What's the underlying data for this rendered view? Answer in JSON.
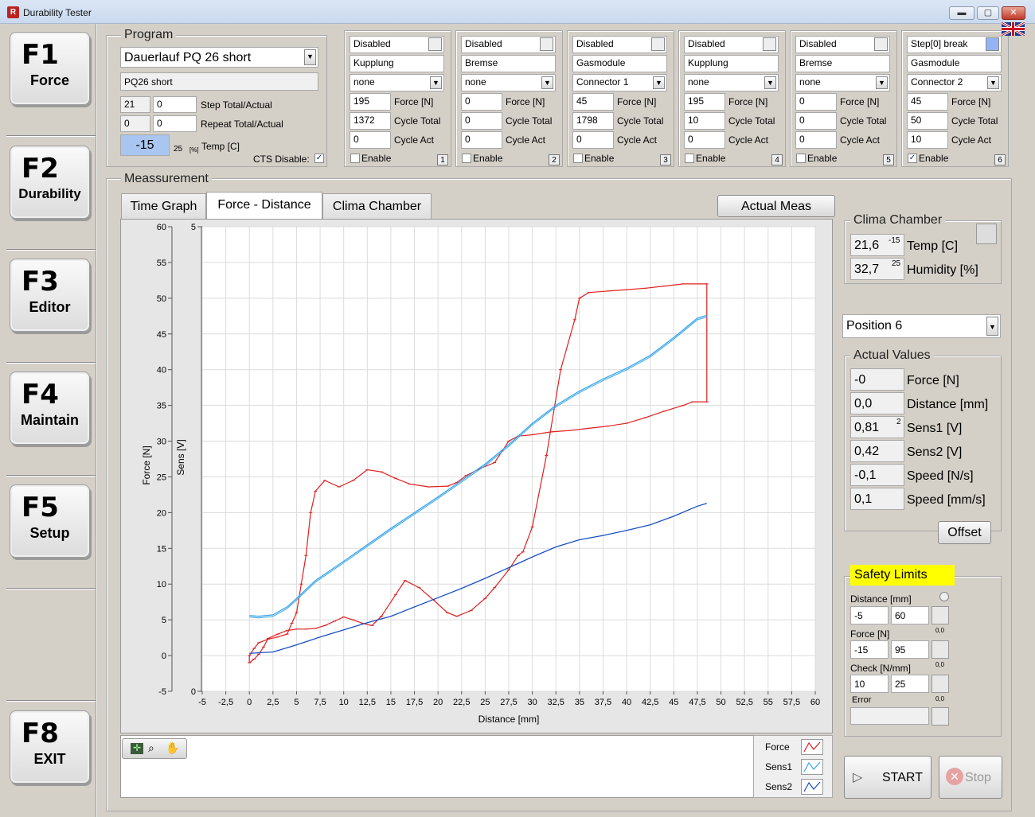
{
  "window": {
    "title": "Durability Tester",
    "minimize": "▬",
    "maximize": "▢",
    "close": "✕"
  },
  "function_keys": [
    {
      "key": "F1",
      "label": "Force"
    },
    {
      "key": "F2",
      "label": "Durability"
    },
    {
      "key": "F3",
      "label": "Editor"
    },
    {
      "key": "F4",
      "label": "Maintain"
    },
    {
      "key": "F5",
      "label": "Setup"
    },
    {
      "key": "F8",
      "label": "EXIT"
    }
  ],
  "program": {
    "group_label": "Program",
    "selected": "Dauerlauf PQ 26 short",
    "name": "PQ26 short",
    "step_total": "21",
    "step_actual": "0",
    "step_label": "Step Total/Actual",
    "repeat_total": "0",
    "repeat_actual": "0",
    "repeat_label": "Repeat Total/Actual",
    "temp": "-15",
    "temp_small": "25",
    "temp_unit": "[%]",
    "temp_label": "Temp [C]",
    "cts_label": "CTS Disable:",
    "cts_checked": "✓"
  },
  "stations": [
    {
      "status": "Disabled",
      "device": "Kupplung",
      "connector": "none",
      "force": "195",
      "cycle_total": "1372",
      "cycle_act": "0",
      "enabled": "",
      "number": "1"
    },
    {
      "status": "Disabled",
      "device": "Bremse",
      "connector": "none",
      "force": "0",
      "cycle_total": "0",
      "cycle_act": "0",
      "enabled": "",
      "number": "2"
    },
    {
      "status": "Disabled",
      "device": "Gasmodule",
      "connector": "Connector 1",
      "force": "45",
      "cycle_total": "1798",
      "cycle_act": "0",
      "enabled": "",
      "number": "3"
    },
    {
      "status": "Disabled",
      "device": "Kupplung",
      "connector": "none",
      "force": "195",
      "cycle_total": "10",
      "cycle_act": "0",
      "enabled": "",
      "number": "4"
    },
    {
      "status": "Disabled",
      "device": "Bremse",
      "connector": "none",
      "force": "0",
      "cycle_total": "0",
      "cycle_act": "0",
      "enabled": "",
      "number": "5"
    },
    {
      "status": "Step[0] break",
      "device": "Gasmodule",
      "connector": "Connector 2",
      "force": "45",
      "cycle_total": "50",
      "cycle_act": "10",
      "enabled": "✓",
      "number": "6"
    }
  ],
  "station_labels": {
    "force": "Force [N]",
    "cycle_total": "Cycle Total",
    "cycle_act": "Cycle Act",
    "enable": "Enable"
  },
  "measurement": {
    "group_label": "Meassurement",
    "tabs": [
      "Time Graph",
      "Force - Distance",
      "Clima Chamber"
    ],
    "active_tab": "Force - Distance",
    "actual_meas_button": "Actual Meas"
  },
  "legend": [
    {
      "name": "Force",
      "color": "#e02020"
    },
    {
      "name": "Sens1",
      "color": "#3aa6ea"
    },
    {
      "name": "Sens2",
      "color": "#1a4fc0"
    }
  ],
  "chart_data": {
    "type": "line",
    "xlabel": "Distance [mm]",
    "ylabel": "Force [N]",
    "ylabel2": "Sens [V]",
    "xlim": [
      -5,
      60
    ],
    "ylim": [
      -5,
      60
    ],
    "ylim2": [
      0,
      5
    ],
    "x_ticks": [
      "-5",
      "-2,5",
      "0",
      "2,5",
      "5",
      "7,5",
      "10",
      "12,5",
      "15",
      "17,5",
      "20",
      "22,5",
      "25",
      "27,5",
      "30",
      "32,5",
      "35",
      "37,5",
      "40",
      "42,5",
      "45",
      "47,5",
      "50",
      "52,5",
      "55",
      "57,5",
      "60"
    ],
    "y_ticks": [
      "-5",
      "0",
      "5",
      "10",
      "15",
      "20",
      "25",
      "30",
      "35",
      "40",
      "45",
      "50",
      "55",
      "60"
    ],
    "y2_ticks": [
      "0",
      "5"
    ],
    "grid": true,
    "series": [
      {
        "name": "Force",
        "color": "#e02020",
        "points": [
          [
            0,
            -1
          ],
          [
            0,
            0
          ],
          [
            0.5,
            1
          ],
          [
            1,
            1.8
          ],
          [
            2,
            2.3
          ],
          [
            3,
            2.6
          ],
          [
            4,
            3
          ],
          [
            4.5,
            4.5
          ],
          [
            5,
            6
          ],
          [
            5.5,
            10
          ],
          [
            6,
            14
          ],
          [
            6.5,
            20
          ],
          [
            7,
            23
          ],
          [
            8,
            24.5
          ],
          [
            9.5,
            23.6
          ],
          [
            11,
            24.5
          ],
          [
            12.5,
            26
          ],
          [
            14,
            25.7
          ],
          [
            15.5,
            24.8
          ],
          [
            17,
            24
          ],
          [
            19,
            23.6
          ],
          [
            21,
            23.7
          ],
          [
            22,
            24.2
          ],
          [
            23,
            25.2
          ],
          [
            24.5,
            26.2
          ],
          [
            26,
            27
          ],
          [
            27.5,
            30
          ],
          [
            28.5,
            30.7
          ],
          [
            30,
            30.9
          ],
          [
            32,
            31.3
          ],
          [
            34,
            31.5
          ],
          [
            36,
            31.8
          ],
          [
            38,
            32.1
          ],
          [
            40,
            32.5
          ],
          [
            42,
            33.3
          ],
          [
            44,
            34.2
          ],
          [
            46,
            35
          ],
          [
            47,
            35.5
          ],
          [
            48.5,
            35.5
          ],
          [
            48.5,
            52
          ],
          [
            46,
            52
          ],
          [
            44,
            51.7
          ],
          [
            42,
            51.4
          ],
          [
            40,
            51.2
          ],
          [
            38,
            51
          ],
          [
            36,
            50.8
          ],
          [
            35,
            50
          ],
          [
            34.5,
            47
          ],
          [
            33,
            40
          ],
          [
            31.5,
            28
          ],
          [
            30,
            18
          ],
          [
            29,
            14.5
          ],
          [
            28.5,
            14
          ],
          [
            27.5,
            12
          ],
          [
            26,
            9.5
          ],
          [
            25,
            8
          ],
          [
            23.5,
            6.3
          ],
          [
            22,
            5.5
          ],
          [
            21,
            6
          ],
          [
            19.5,
            7.8
          ],
          [
            18,
            9.5
          ],
          [
            16.5,
            10.5
          ],
          [
            15.5,
            8.5
          ],
          [
            14,
            5.5
          ],
          [
            13,
            4.2
          ],
          [
            12,
            4.5
          ],
          [
            11,
            5
          ],
          [
            10,
            5.4
          ],
          [
            9,
            4.8
          ],
          [
            8,
            4.2
          ],
          [
            7,
            3.8
          ],
          [
            6,
            3.7
          ],
          [
            5,
            3.7
          ],
          [
            4,
            3.5
          ],
          [
            3,
            3
          ],
          [
            2,
            2.4
          ],
          [
            1.5,
            1.2
          ],
          [
            1,
            0.2
          ],
          [
            0.5,
            -0.5
          ],
          [
            0,
            -1
          ]
        ]
      },
      {
        "name": "Sens1",
        "color": "#3aa6ea",
        "points": [
          [
            0,
            5.6
          ],
          [
            1,
            5.5
          ],
          [
            2.5,
            5.7
          ],
          [
            4,
            6.8
          ],
          [
            5,
            8
          ],
          [
            7,
            10.5
          ],
          [
            10,
            13.2
          ],
          [
            12.5,
            15.5
          ],
          [
            15,
            17.8
          ],
          [
            17.5,
            20
          ],
          [
            20,
            22.2
          ],
          [
            22.5,
            24.5
          ],
          [
            25,
            26.8
          ],
          [
            27.5,
            29.5
          ],
          [
            30,
            32.5
          ],
          [
            32.5,
            35
          ],
          [
            35,
            37
          ],
          [
            37.5,
            38.7
          ],
          [
            40,
            40.2
          ],
          [
            42.5,
            42
          ],
          [
            45,
            44.5
          ],
          [
            47.5,
            47.2
          ],
          [
            48.5,
            47.6
          ]
        ]
      },
      {
        "name": "Sens2",
        "color": "#1a4fc0",
        "points": [
          [
            0,
            0.3
          ],
          [
            1,
            0.4
          ],
          [
            2.5,
            0.5
          ],
          [
            5,
            1.5
          ],
          [
            7.5,
            2.6
          ],
          [
            10,
            3.6
          ],
          [
            12.5,
            4.6
          ],
          [
            15,
            5.5
          ],
          [
            17.5,
            6.8
          ],
          [
            20,
            8.1
          ],
          [
            22.5,
            9.4
          ],
          [
            25,
            10.8
          ],
          [
            27.5,
            12.3
          ],
          [
            30,
            13.8
          ],
          [
            32.5,
            15.2
          ],
          [
            35,
            16.2
          ],
          [
            37.5,
            16.8
          ],
          [
            40,
            17.5
          ],
          [
            42.5,
            18.3
          ],
          [
            45,
            19.5
          ],
          [
            47.5,
            20.9
          ],
          [
            48.5,
            21.3
          ]
        ]
      }
    ]
  },
  "clima": {
    "group_label": "Clima Chamber",
    "temp_value": "21,6",
    "temp_setpoint": "-15",
    "temp_label": "Temp [C]",
    "humidity_value": "32,7",
    "humidity_setpoint": "25",
    "humidity_label": "Humidity [%]"
  },
  "position": {
    "selected": "Position 6"
  },
  "actual_values": {
    "group_label": "Actual Values",
    "rows": [
      {
        "value": "-0",
        "label": "Force [N]",
        "badge": ""
      },
      {
        "value": "0,0",
        "label": "Distance [mm]",
        "badge": ""
      },
      {
        "value": "0,81",
        "label": "Sens1 [V]",
        "badge": "2"
      },
      {
        "value": "0,42",
        "label": "Sens2 [V]",
        "badge": ""
      },
      {
        "value": "-0,1",
        "label": "Speed [N/s]",
        "badge": ""
      },
      {
        "value": "0,1",
        "label": "Speed [mm/s]",
        "badge": ""
      }
    ],
    "offset_button": "Offset"
  },
  "safety": {
    "group_label": "Safety Limits",
    "distance_label": "Distance [mm]",
    "distance_min": "-5",
    "distance_max": "60",
    "distance_val": "0,0",
    "force_label": "Force [N]",
    "force_min": "-15",
    "force_max": "95",
    "force_val": "0,0",
    "check_label": "Check [N/mm]",
    "check_min": "10",
    "check_max": "25",
    "check_val": "0,0",
    "error_label": "Error"
  },
  "controls": {
    "start": "START",
    "stop": "Stop"
  },
  "accent": {
    "selection": "#a9c6f0",
    "highlight": "#ffff00",
    "station6_indicator": "#93b3f5"
  }
}
